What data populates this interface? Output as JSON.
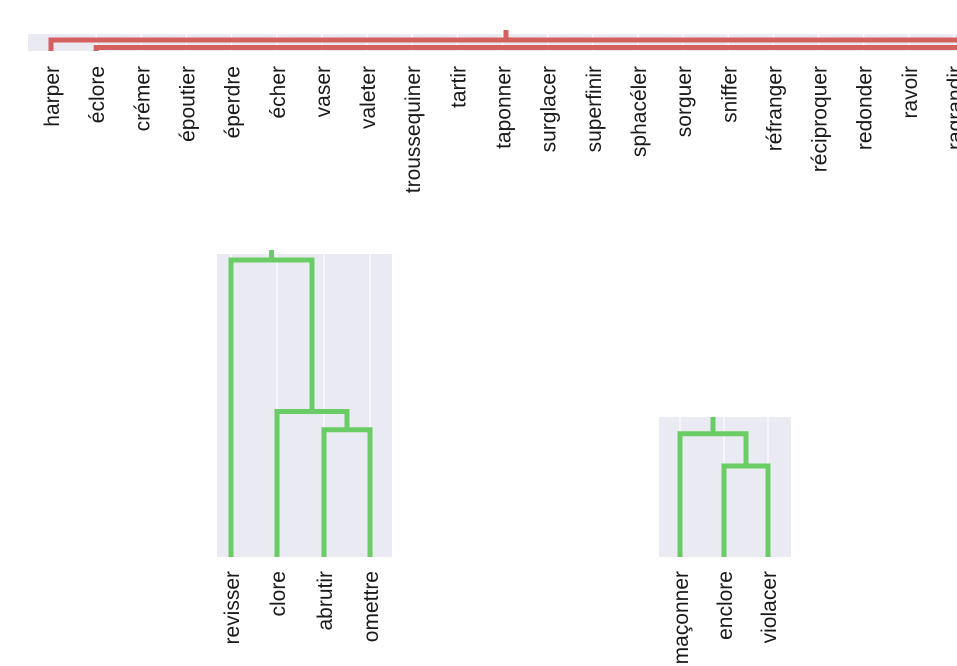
{
  "chart_data": [
    {
      "type": "dendrogram",
      "orientation": "top",
      "color": "#d65f5f",
      "leaves": [
        "harper",
        "éclore",
        "crémer",
        "époutier",
        "éperdre",
        "écher",
        "vaser",
        "valeter",
        "troussequiner",
        "tartir",
        "taponner",
        "surglacer",
        "superfinir",
        "sphacéler",
        "sorguer",
        "sniffer",
        "réfranger",
        "réciproquer",
        "redonder",
        "ravoir",
        "ragrandir"
      ]
    },
    {
      "type": "dendrogram",
      "orientation": "top",
      "color": "#6acc64",
      "leaves": [
        "revisser",
        "clore",
        "abrutir",
        "omettre"
      ],
      "links": [
        {
          "left": "abrutir",
          "right": "omettre",
          "height": 0.42
        },
        {
          "left": "clore",
          "right": "abrutir+omettre",
          "height": 0.48
        },
        {
          "left": "revisser",
          "right": "clore+abrutir+omettre",
          "height": 0.98
        }
      ]
    },
    {
      "type": "dendrogram",
      "orientation": "top",
      "color": "#6acc64",
      "leaves": [
        "maçonner",
        "enclore",
        "violacer"
      ],
      "links": [
        {
          "left": "enclore",
          "right": "violacer",
          "height": 0.65
        },
        {
          "left": "maçonner",
          "right": "enclore+violacer",
          "height": 0.88
        }
      ]
    }
  ]
}
